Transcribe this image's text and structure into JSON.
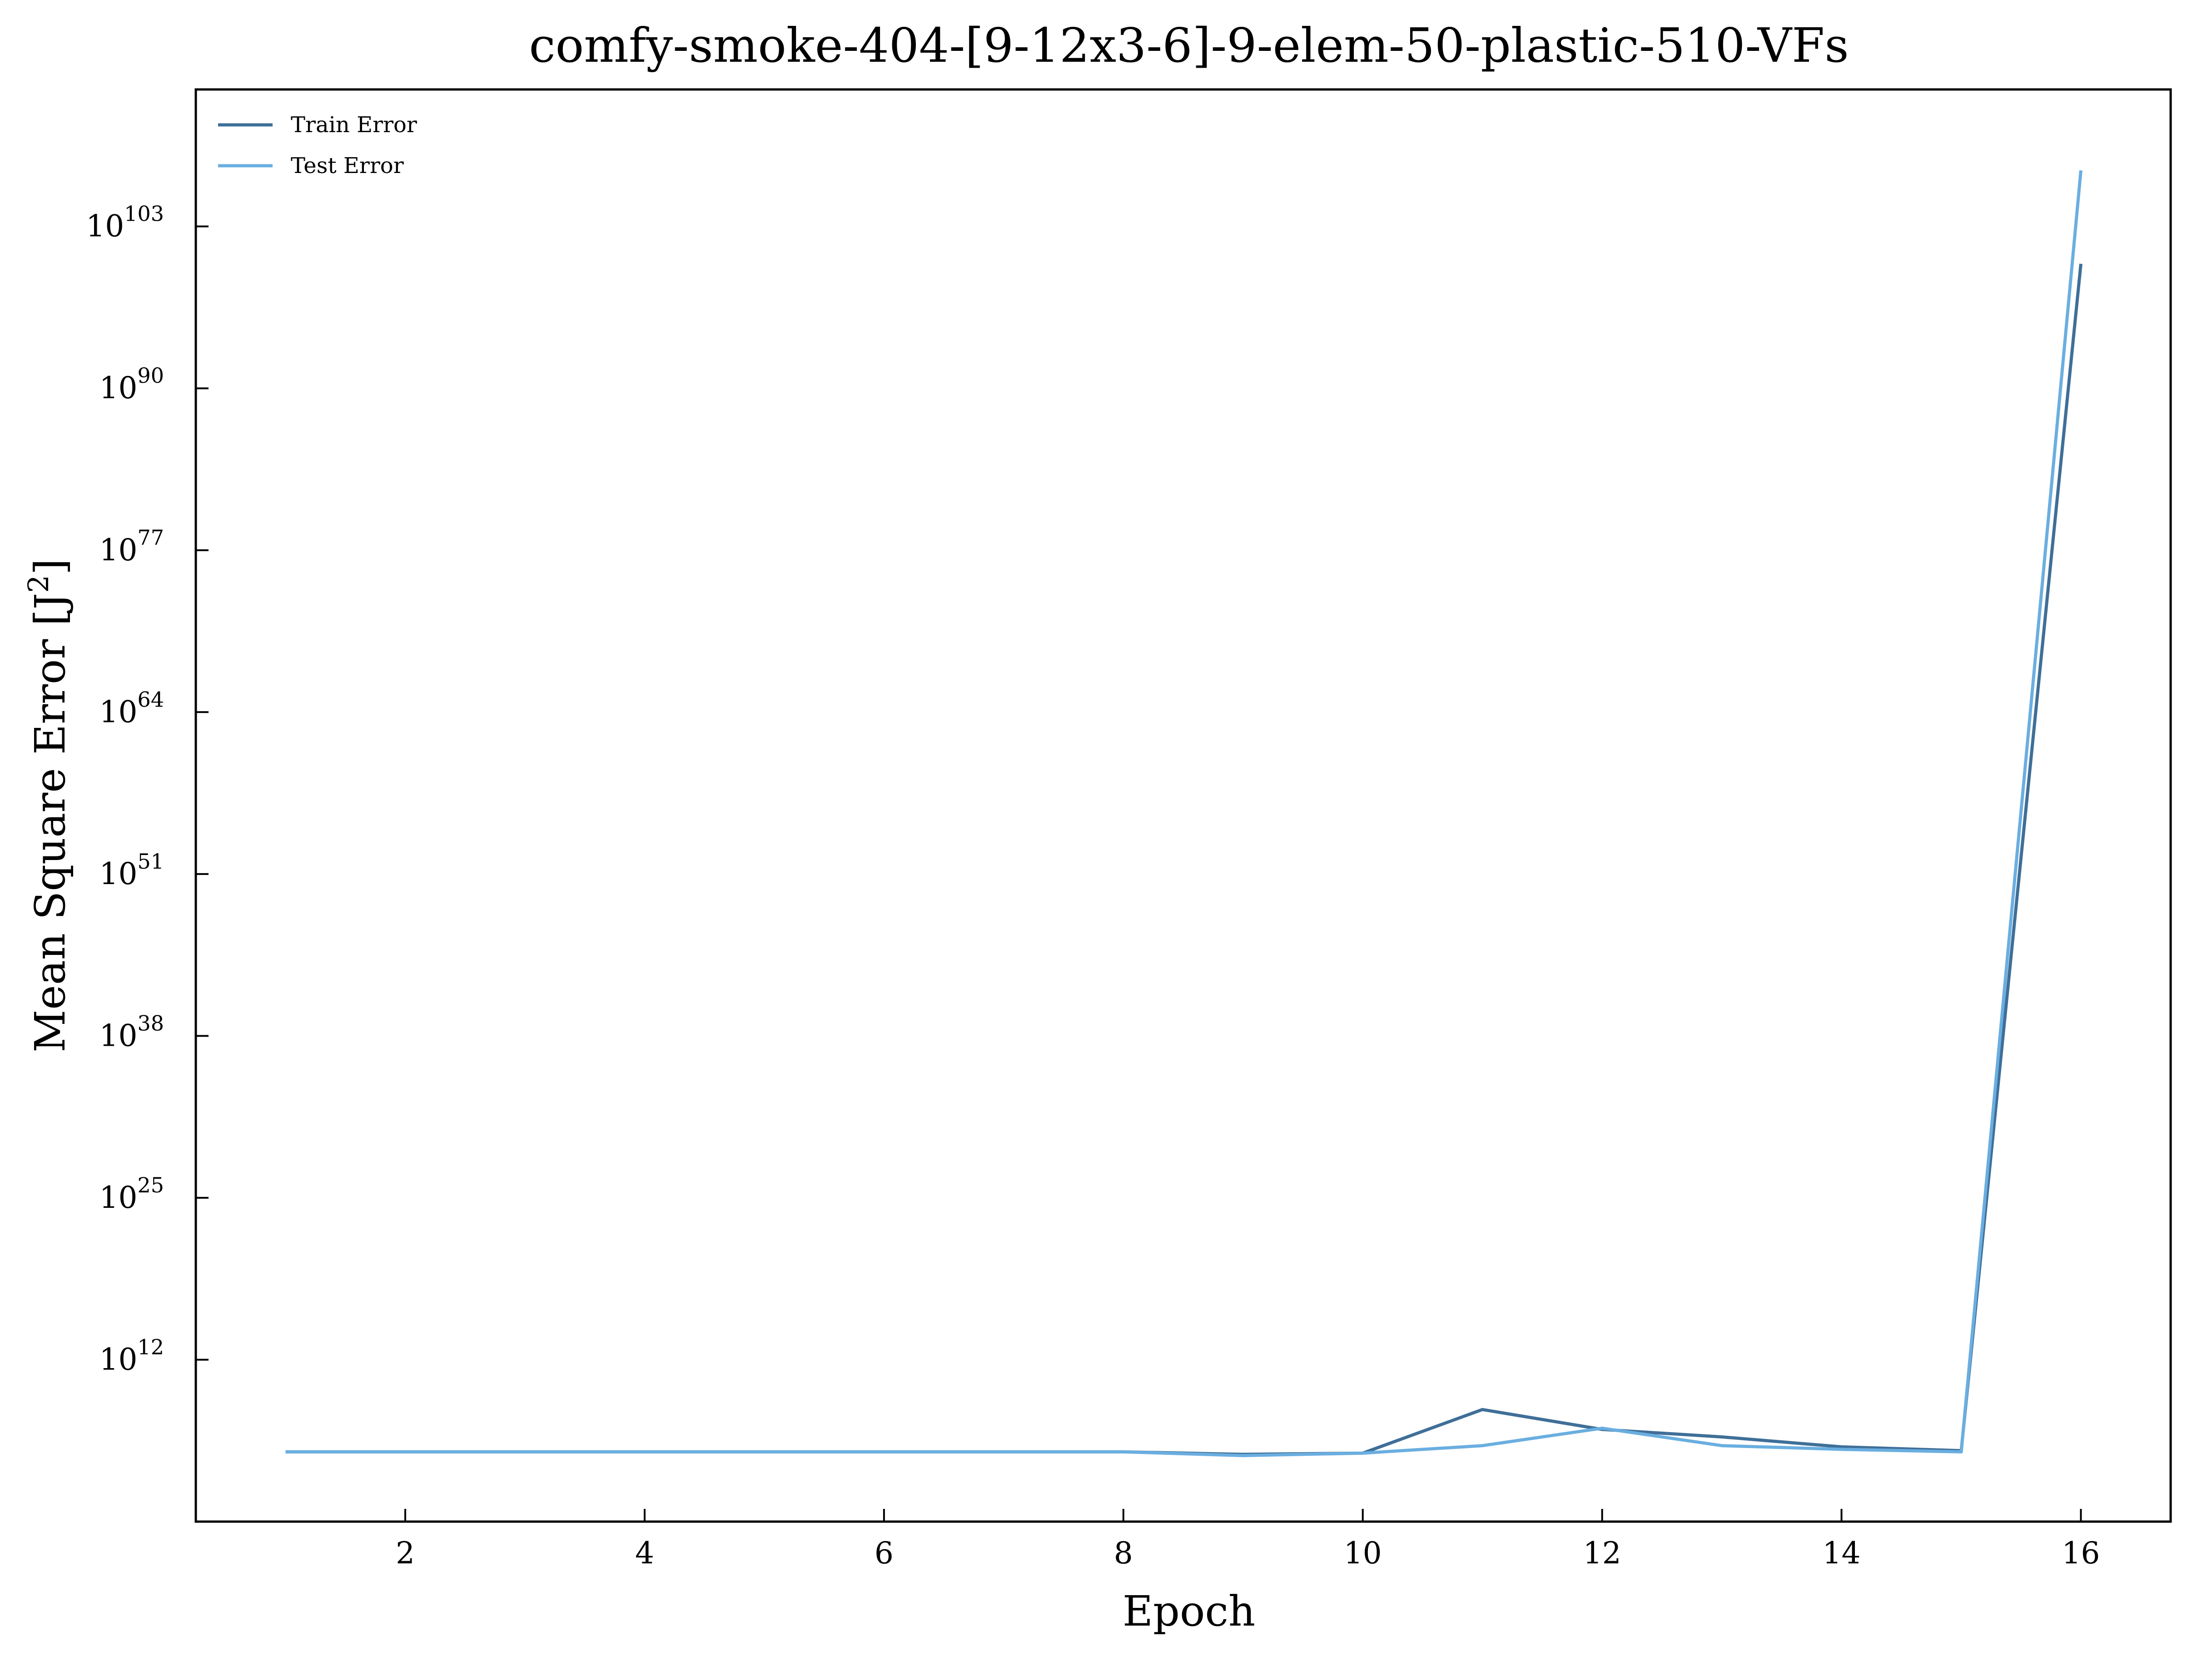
{
  "chart_data": {
    "type": "line",
    "title": "comfy-smoke-404-[9-12x3-6]-9-elem-50-plastic-510-VFs",
    "xlabel": "Epoch",
    "ylabel_main": "Mean Square Error [J",
    "ylabel_sup": "2",
    "ylabel_close": "]",
    "yscale": "log",
    "xlim": [
      0.25,
      16.75
    ],
    "ylim_log10": [
      -1,
      114
    ],
    "x_ticks": [
      2,
      4,
      6,
      8,
      10,
      12,
      14,
      16
    ],
    "x_tick_labels": [
      "2",
      "4",
      "6",
      "8",
      "10",
      "12",
      "14",
      "16"
    ],
    "y_ticks_log10": [
      12,
      25,
      38,
      51,
      64,
      77,
      90,
      103
    ],
    "y_tick_base": "10",
    "y_tick_exponents": [
      "12",
      "25",
      "38",
      "51",
      "64",
      "77",
      "90",
      "103"
    ],
    "legend_position": "top-left",
    "grid": false,
    "x": [
      1,
      2,
      3,
      4,
      5,
      6,
      7,
      8,
      9,
      10,
      11,
      12,
      13,
      14,
      15,
      16
    ],
    "series": [
      {
        "name": "Train Error",
        "color": "#3f6f98",
        "log10_values": [
          4.6,
          4.6,
          4.6,
          4.6,
          4.6,
          4.6,
          4.6,
          4.6,
          4.4,
          4.5,
          8.0,
          6.4,
          5.8,
          5.0,
          4.7,
          100.0
        ]
      },
      {
        "name": "Test Error",
        "color": "#6aaee0",
        "log10_values": [
          4.6,
          4.6,
          4.6,
          4.6,
          4.6,
          4.6,
          4.6,
          4.6,
          4.3,
          4.5,
          5.1,
          6.5,
          5.1,
          4.8,
          4.6,
          107.5
        ]
      }
    ]
  }
}
